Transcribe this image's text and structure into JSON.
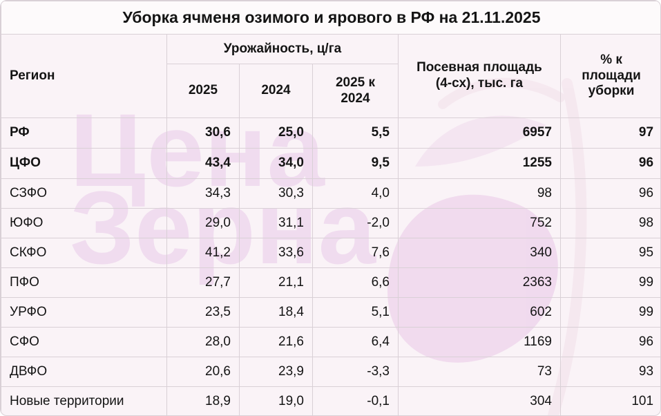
{
  "title": "Уборка ячменя озимого и ярового в РФ на 21.11.2025",
  "watermark": {
    "line1": "Цена",
    "line2": "Зерна"
  },
  "headers": {
    "region": "Регион",
    "yield_group": "Урожайность, ц/га",
    "y2025": "2025",
    "y2024": "2024",
    "diff": "2025 к 2024",
    "area": "Посевная площадь (4-сх), тыс. га",
    "pct": "% к площади уборки"
  },
  "colors": {
    "background": "#faf3f7",
    "grid": "#d9d0d6",
    "watermark": "#e8cbe9"
  },
  "chart_data": {
    "type": "table",
    "title": "Уборка ячменя озимого и ярового в РФ на 21.11.2025",
    "columns": [
      "Регион",
      "2025",
      "2024",
      "2025 к 2024",
      "Посевная площадь (4-сх), тыс. га",
      "% к площади уборки"
    ],
    "rows": [
      {
        "region": "РФ",
        "y2025": "30,6",
        "y2024": "25,0",
        "diff": "5,5",
        "area": "6957",
        "pct": "97",
        "bold": true
      },
      {
        "region": "ЦФО",
        "y2025": "43,4",
        "y2024": "34,0",
        "diff": "9,5",
        "area": "1255",
        "pct": "96",
        "bold": true
      },
      {
        "region": "СЗФО",
        "y2025": "34,3",
        "y2024": "30,3",
        "diff": "4,0",
        "area": "98",
        "pct": "96"
      },
      {
        "region": "ЮФО",
        "y2025": "29,0",
        "y2024": "31,1",
        "diff": "-2,0",
        "area": "752",
        "pct": "98"
      },
      {
        "region": "СКФО",
        "y2025": "41,2",
        "y2024": "33,6",
        "diff": "7,6",
        "area": "340",
        "pct": "95"
      },
      {
        "region": "ПФО",
        "y2025": "27,7",
        "y2024": "21,1",
        "diff": "6,6",
        "area": "2363",
        "pct": "99"
      },
      {
        "region": "УРФО",
        "y2025": "23,5",
        "y2024": "18,4",
        "diff": "5,1",
        "area": "602",
        "pct": "99"
      },
      {
        "region": "СФО",
        "y2025": "28,0",
        "y2024": "21,6",
        "diff": "6,4",
        "area": "1169",
        "pct": "96"
      },
      {
        "region": "ДВФО",
        "y2025": "20,6",
        "y2024": "23,9",
        "diff": "-3,3",
        "area": "73",
        "pct": "93"
      },
      {
        "region": "Новые территории",
        "y2025": "18,9",
        "y2024": "19,0",
        "diff": "-0,1",
        "area": "304",
        "pct": "101"
      }
    ]
  }
}
